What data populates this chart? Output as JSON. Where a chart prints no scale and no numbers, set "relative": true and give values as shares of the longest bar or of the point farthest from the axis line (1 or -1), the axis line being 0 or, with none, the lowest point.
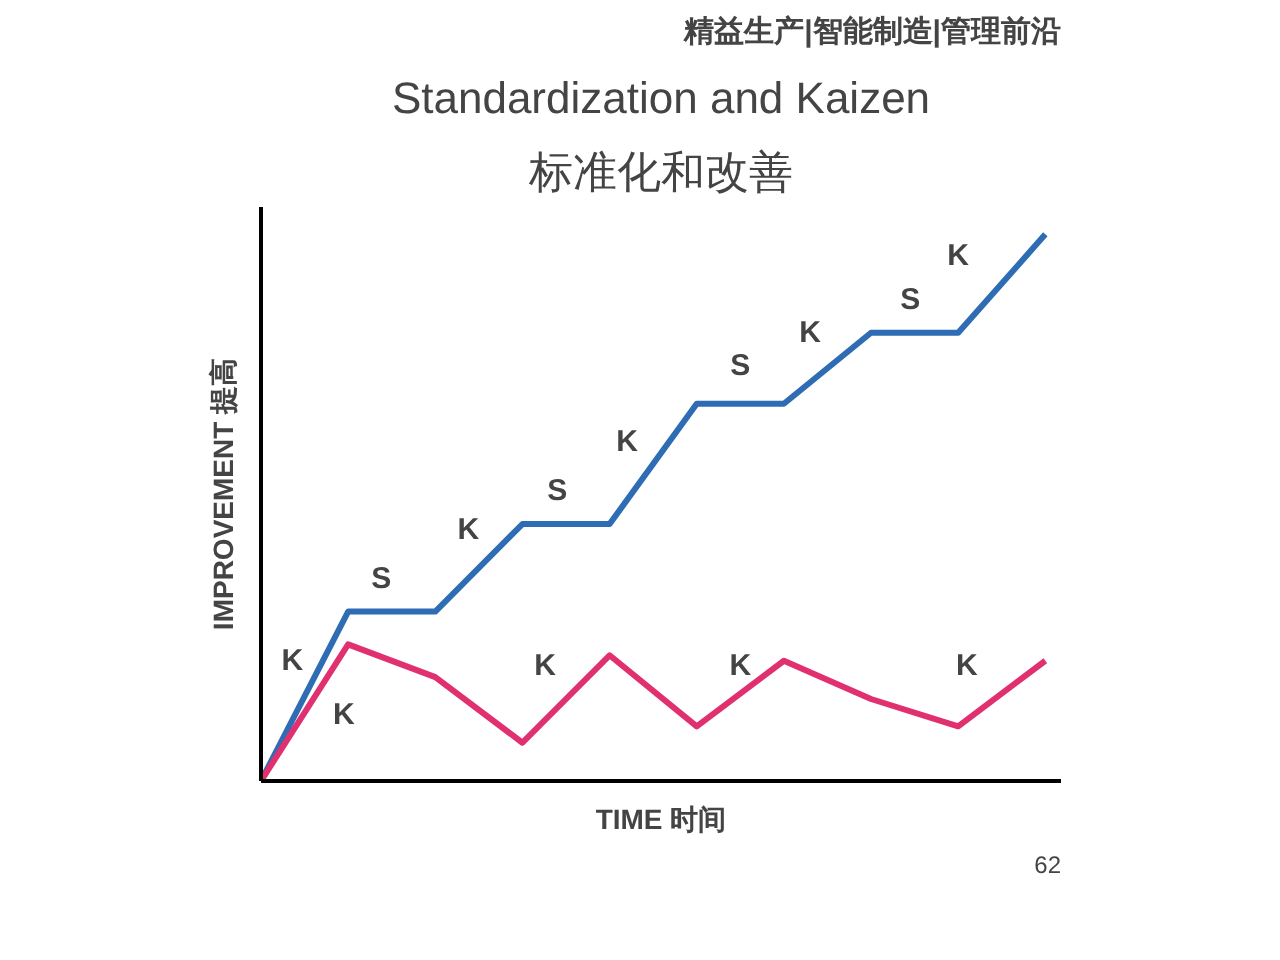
{
  "chart_data": {
    "type": "line",
    "title": "Standardization and Kaizen",
    "subtitle": "标准化和改善",
    "xlabel": "TIME 时间",
    "ylabel": "IMPROVEMENT 提高",
    "relative": true,
    "tick_labels": false,
    "grid": false,
    "line_style": "solid",
    "marker": "none",
    "categories": [
      null,
      null,
      null,
      null,
      null,
      null,
      null,
      null,
      null,
      null
    ],
    "series": [
      {
        "color": "#2e6db4",
        "values": [
          0,
          0.31,
          0.31,
          0.47,
          0.47,
          0.69,
          0.69,
          0.82,
          0.82,
          1
        ]
      },
      {
        "color": "#e0306f",
        "values": [
          0,
          0.25,
          0.19,
          0.07,
          0.23,
          0.1,
          0.22,
          0.15,
          0.1,
          0.22
        ]
      }
    ],
    "annotations": [
      "K",
      "K",
      "S",
      "K",
      "S",
      "K",
      "S",
      "K",
      "S",
      "K",
      "K",
      "K",
      "K",
      "精益生产|智能制造|管理前沿",
      "62"
    ]
  }
}
